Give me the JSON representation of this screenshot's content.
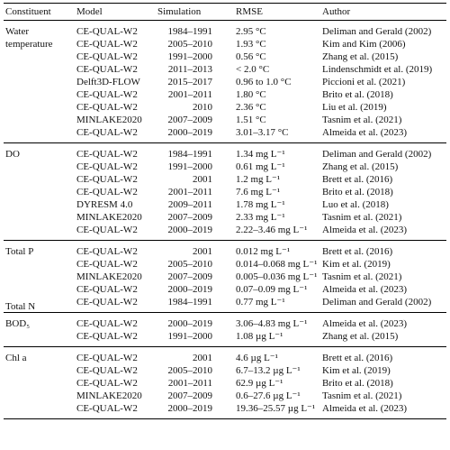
{
  "table": {
    "header": [
      "Constituent",
      "Model",
      "Simulation",
      "RMSE",
      "Author"
    ],
    "sections": [
      {
        "rows": [
          [
            "Water temperature",
            "CE-QUAL-W2",
            "1984–1991",
            "2.95 °C",
            "Deliman and Gerald (2002)"
          ],
          [
            null,
            "CE-QUAL-W2",
            "2005–2010",
            "1.93 °C",
            "Kim and Kim (2006)"
          ],
          [
            null,
            "CE-QUAL-W2",
            "1991–2000",
            "0.56 °C",
            "Zhang et al. (2015)"
          ],
          [
            null,
            "CE-QUAL-W2",
            "2011–2013",
            "< 2.0 °C",
            "Lindenschmidt et al. (2019)"
          ],
          [
            null,
            "Delft3D-FLOW",
            "2015–2017",
            "0.96 to 1.0 °C",
            "Piccioni et al. (2021)"
          ],
          [
            null,
            "CE-QUAL-W2",
            "2001–2011",
            "1.80 °C",
            "Brito et al. (2018)"
          ],
          [
            null,
            "CE-QUAL-W2",
            "2010",
            "2.36 °C",
            "Liu et al. (2019)"
          ],
          [
            null,
            "MINLAKE2020",
            "2007–2009",
            "1.51 °C",
            "Tasnim et al. (2021)"
          ],
          [
            null,
            "CE-QUAL-W2",
            "2000–2019",
            "3.01–3.17 °C",
            "Almeida et al. (2023)"
          ]
        ]
      },
      {
        "rows": [
          [
            "DO",
            "CE-QUAL-W2",
            "1984–1991",
            "1.34 mg L⁻¹",
            "Deliman and Gerald (2002)"
          ],
          [
            null,
            "CE-QUAL-W2",
            "1991–2000",
            "0.61 mg L⁻¹",
            "Zhang et al. (2015)"
          ],
          [
            null,
            "CE-QUAL-W2",
            "2001",
            "1.2 mg L⁻¹",
            "Brett et al. (2016)"
          ],
          [
            null,
            "CE-QUAL-W2",
            "2001–2011",
            "7.6 mg L⁻¹",
            "Brito et al. (2018)"
          ],
          [
            null,
            "DYRESM 4.0",
            "2009–2011",
            "1.78 mg L⁻¹",
            "Luo et al. (2018)"
          ],
          [
            null,
            "MINLAKE2020",
            "2007–2009",
            "2.33 mg L⁻¹",
            "Tasnim et al. (2021)"
          ],
          [
            null,
            "CE-QUAL-W2",
            "2000–2019",
            "2.22–3.46 mg L⁻¹",
            "Almeida et al. (2023)"
          ]
        ]
      },
      {
        "rows": [
          [
            "Total P",
            "CE-QUAL-W2",
            "2001",
            "0.012 mg L⁻¹",
            "Brett et al. (2016)"
          ],
          [
            null,
            "CE-QUAL-W2",
            "2005–2010",
            "0.014–0.068 mg L⁻¹",
            "Kim et al. (2019)"
          ],
          [
            null,
            "MINLAKE2020",
            "2007–2009",
            "0.005–0.036 mg L⁻¹",
            "Tasnim et al. (2021)"
          ],
          [
            null,
            "CE-QUAL-W2",
            "2000–2019",
            "0.07–0.09 mg L⁻¹",
            "Almeida et al. (2023)"
          ],
          [
            "Total N",
            "CE-QUAL-W2",
            "1984–1991",
            "0.77 mg L⁻¹",
            "Deliman and Gerald (2002)"
          ]
        ]
      },
      {
        "rows": [
          [
            "BOD₅",
            "CE-QUAL-W2",
            "2000–2019",
            "3.06–4.83 mg L⁻¹",
            "Almeida et al. (2023)"
          ],
          [
            null,
            "CE-QUAL-W2",
            "1991–2000",
            "1.08 µg L⁻¹",
            "Zhang et al. (2015)"
          ]
        ]
      },
      {
        "rows": [
          [
            "Chl a",
            "CE-QUAL-W2",
            "2001",
            "4.6 µg L⁻¹",
            "Brett et al. (2016)"
          ],
          [
            null,
            "CE-QUAL-W2",
            "2005–2010",
            "6.7–13.2 µg L⁻¹",
            "Kim et al. (2019)"
          ],
          [
            null,
            "CE-QUAL-W2",
            "2001–2011",
            "62.9 µg L⁻¹",
            "Brito et al. (2018)"
          ],
          [
            null,
            "MINLAKE2020",
            "2007–2009",
            "0.6–27.6 µg L⁻¹",
            "Tasnim et al. (2021)"
          ],
          [
            null,
            "CE-QUAL-W2",
            "2000–2019",
            "19.36–25.57 µg L⁻¹",
            "Almeida et al. (2023)"
          ]
        ]
      }
    ]
  }
}
